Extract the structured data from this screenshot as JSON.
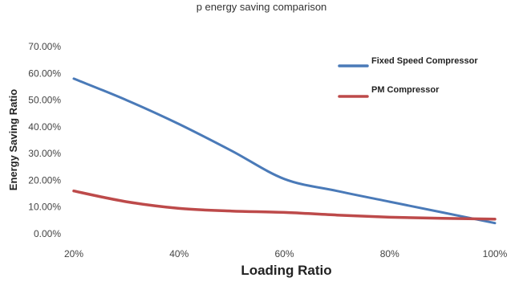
{
  "header_fragment": "p         energy saving comparison",
  "chart_data": {
    "type": "line",
    "title": "",
    "xlabel": "Loading Ratio",
    "ylabel": "Energy Saving Ratio",
    "x": [
      20,
      30,
      40,
      50,
      60,
      70,
      80,
      90,
      100
    ],
    "x_tick_labels": [
      "20%",
      "40%",
      "60%",
      "80%",
      "100%"
    ],
    "x_tick_values": [
      20,
      40,
      60,
      80,
      100
    ],
    "xlim": [
      20,
      100
    ],
    "y_tick_labels": [
      "0.00%",
      "10.00%",
      "20.00%",
      "30.00%",
      "40.00%",
      "50.00%",
      "60.00%",
      "70.00%"
    ],
    "y_tick_values": [
      0,
      10,
      20,
      30,
      40,
      50,
      60,
      70
    ],
    "ylim": [
      0,
      70
    ],
    "grid": false,
    "legend_position": "top-right",
    "series": [
      {
        "name": "Fixed Speed Compressor",
        "color": "#4a7ab8",
        "values": [
          58,
          50,
          41,
          31,
          20.5,
          16,
          12,
          8,
          4
        ]
      },
      {
        "name": "PM Compressor",
        "color": "#bd4a4a",
        "values": [
          16,
          12,
          9.5,
          8.5,
          8,
          7,
          6.2,
          5.8,
          5.5
        ]
      }
    ]
  }
}
